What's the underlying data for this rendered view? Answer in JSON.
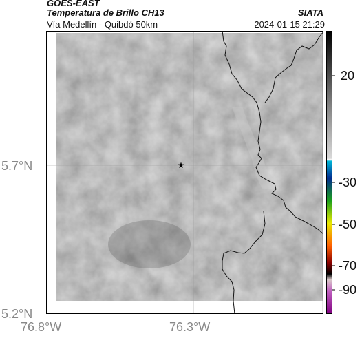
{
  "header": {
    "satellite": "GOES-EAST",
    "product": "Temperatura de Brillo CH13",
    "route": "Vía Medellín - Quibdó 50km",
    "organization": "SIATA",
    "datetime": "2024-01-15 21:29"
  },
  "axes": {
    "lat_labels": [
      "5.7°N",
      "5.2°N"
    ],
    "lon_labels": [
      "76.8°W",
      "76.3°W"
    ]
  },
  "marker": {
    "icon": "star-icon"
  },
  "colorbar": {
    "tick_labels": [
      "20",
      "-30",
      "-50",
      "-70",
      "-90"
    ],
    "colors": [
      "#ffffff",
      "#d9d9d9",
      "#8a8a8a",
      "#3a3a3a",
      "#000000",
      "#00b7d8",
      "#002c8f",
      "#1ba01b",
      "#e8e800",
      "#ff6000",
      "#8a0000",
      "#d8c8c8",
      "#c060c0",
      "#800080"
    ]
  }
}
